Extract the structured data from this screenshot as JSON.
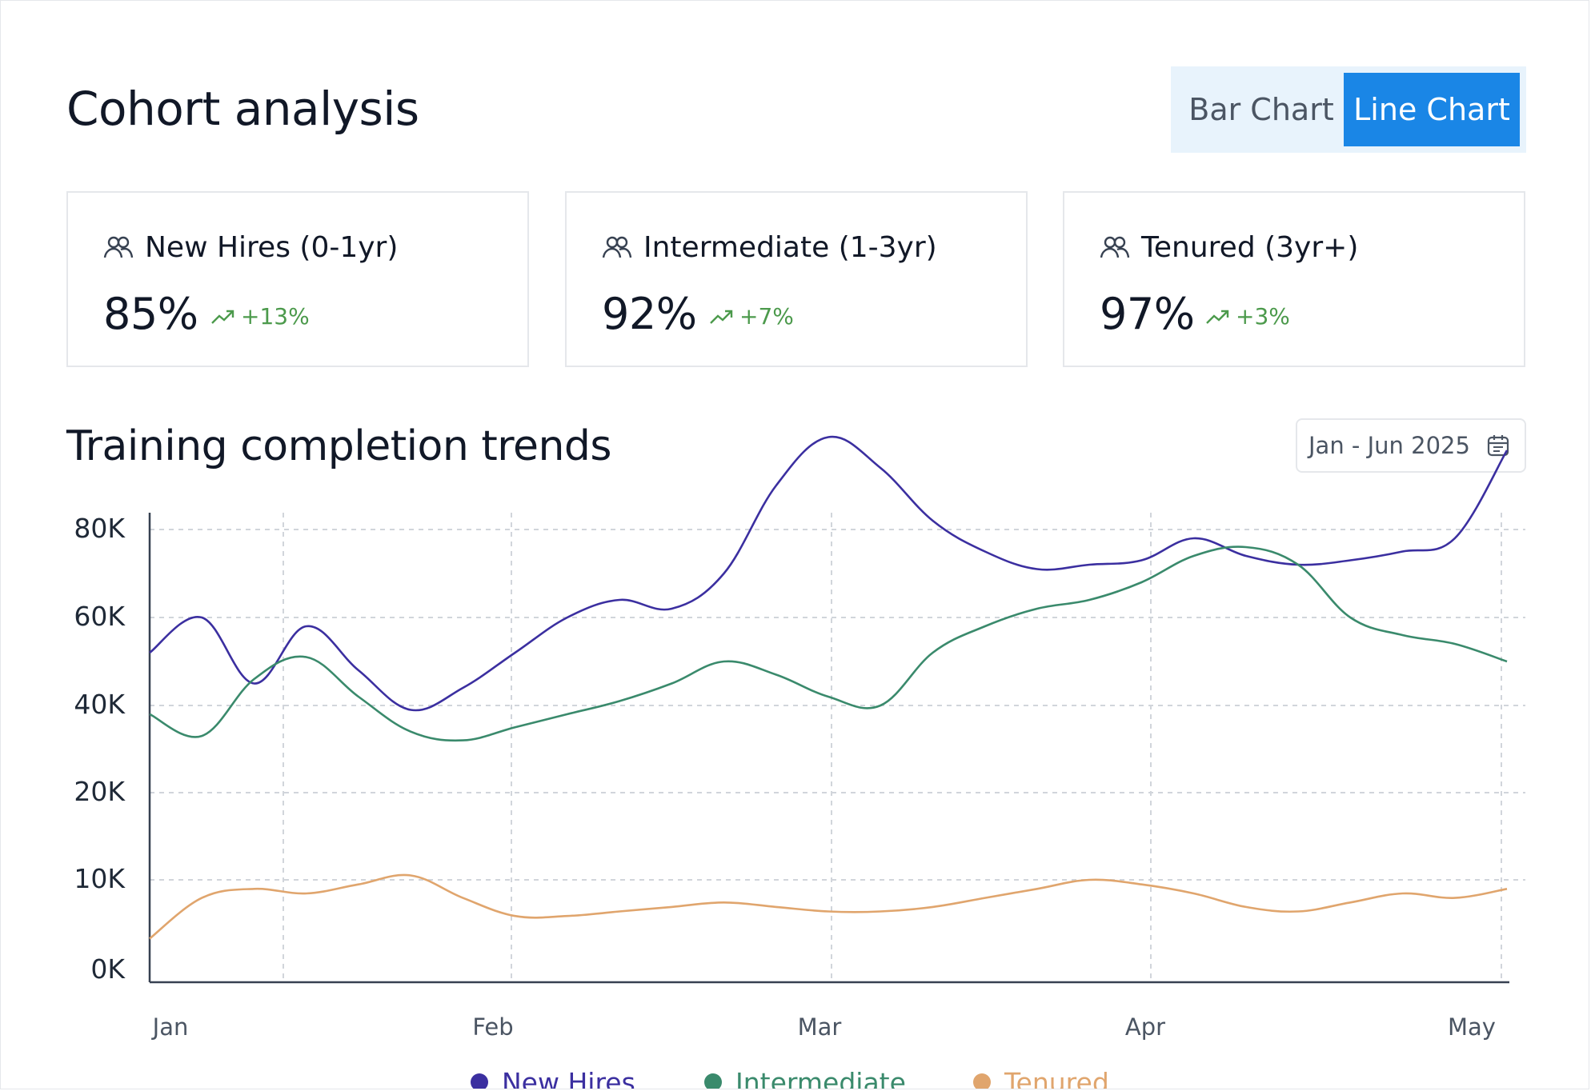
{
  "header": {
    "title": "Cohort analysis",
    "toggle": {
      "bar_label": "Bar Chart",
      "line_label": "Line Chart",
      "active": "line"
    }
  },
  "cards": [
    {
      "icon": "users-icon",
      "label": "New Hires (0-1yr)",
      "value": "85%",
      "trend_icon": "trending-up-icon",
      "delta": "+13%"
    },
    {
      "icon": "users-icon",
      "label": "Intermediate (1-3yr)",
      "value": "92%",
      "trend_icon": "trending-up-icon",
      "delta": "+7%"
    },
    {
      "icon": "users-icon",
      "label": "Tenured (3yr+)",
      "value": "97%",
      "trend_icon": "trending-up-icon",
      "delta": "+3%"
    }
  ],
  "trends": {
    "title": "Training completion trends",
    "date_range": "Jan - Jun 2025",
    "date_icon": "calendar-icon"
  },
  "colors": {
    "accent": "#1a86e6",
    "positive": "#4c9a4c",
    "new_hires": "#3b2fa0",
    "intermediate": "#3a8a6c",
    "tenured": "#e0a56d"
  },
  "chart_data": {
    "type": "line",
    "title": "Training completion trends",
    "xlabel": "",
    "ylabel": "",
    "y_ticks": [
      "0K",
      "10K",
      "20K",
      "40K",
      "60K",
      "80K"
    ],
    "y_tick_values": [
      0,
      10000,
      20000,
      40000,
      60000,
      80000
    ],
    "x_tick_labels": [
      "Jan",
      "Feb",
      "Mar",
      "Apr",
      "May"
    ],
    "x_tick_positions": [
      0,
      1,
      2,
      3,
      4
    ],
    "x": [
      0,
      0.2,
      0.4,
      0.6,
      0.8,
      1.0,
      1.2,
      1.4,
      1.6,
      1.8,
      2.0,
      2.2,
      2.4,
      2.6,
      2.8,
      3.0,
      3.2,
      3.4,
      3.6,
      3.8,
      4.0,
      4.2,
      4.4,
      4.6,
      4.8,
      5.0,
      5.2
    ],
    "series": [
      {
        "name": "New Hires",
        "color": "#3b2fa0",
        "values": [
          52000,
          60000,
          45000,
          58000,
          48000,
          39000,
          44000,
          52000,
          60000,
          64000,
          62000,
          70000,
          90000,
          101000,
          94000,
          82000,
          75000,
          71000,
          72000,
          73000,
          78000,
          74000,
          72000,
          73000,
          75000,
          78000,
          98000
        ]
      },
      {
        "name": "Intermediate",
        "color": "#3a8a6c",
        "values": [
          38000,
          33000,
          46000,
          51000,
          42000,
          34000,
          32000,
          35000,
          38000,
          41000,
          45000,
          50000,
          47000,
          42000,
          40000,
          52000,
          58000,
          62000,
          64000,
          68000,
          74000,
          76000,
          72000,
          60000,
          56000,
          54000,
          50000
        ]
      },
      {
        "name": "Tenured",
        "color": "#e0a56d",
        "values": [
          3500,
          8000,
          9000,
          8500,
          9500,
          10500,
          8000,
          6000,
          6000,
          6500,
          7000,
          7500,
          7000,
          6500,
          6500,
          7000,
          8000,
          9000,
          10000,
          9500,
          8500,
          7000,
          6500,
          7500,
          8500,
          8000,
          9000
        ]
      }
    ],
    "legend": [
      {
        "name": "New Hires",
        "color": "#3b2fa0"
      },
      {
        "name": "Intermediate",
        "color": "#3a8a6c"
      },
      {
        "name": "Tenured",
        "color": "#e0a56d"
      }
    ],
    "grid": true,
    "legend_position": "bottom"
  }
}
